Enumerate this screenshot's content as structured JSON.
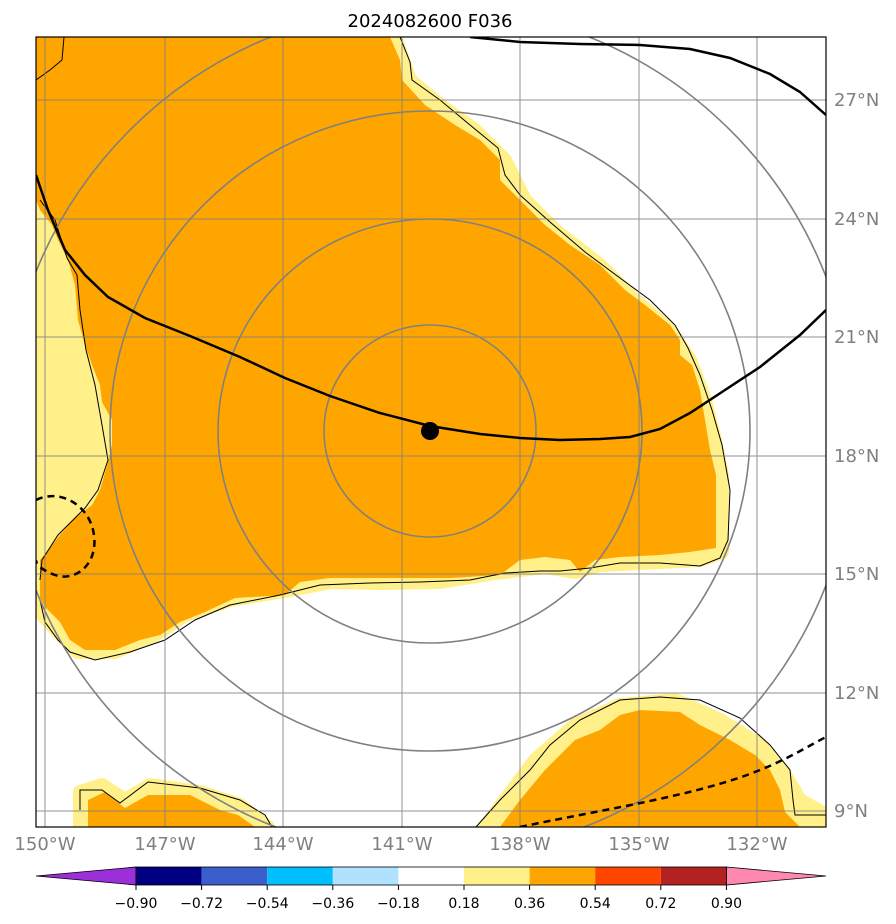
{
  "title": "2024082600 F036",
  "lat_labels": [
    "27°N",
    "24°N",
    "21°N",
    "18°N",
    "15°N",
    "12°N",
    "9°N"
  ],
  "lon_labels": [
    "150°W",
    "147°W",
    "144°W",
    "141°W",
    "138°W",
    "135°W",
    "132°W"
  ],
  "colorbar": {
    "ticks": [
      "−0.90",
      "−0.72",
      "−0.54",
      "−0.36",
      "−0.18",
      "0.18",
      "0.36",
      "0.54",
      "0.72",
      "0.90"
    ],
    "colors": [
      "#9b30d9",
      "#000080",
      "#3a5fcd",
      "#00bfff",
      "#b0e2ff",
      "#ffffff",
      "#fff08a",
      "#ffa500",
      "#ff4500",
      "#b22222",
      "#ff88b0"
    ]
  },
  "colors": {
    "field_high": "#ffa500",
    "field_low": "#fff08a",
    "grid": "#808080",
    "track": "#000000"
  }
}
